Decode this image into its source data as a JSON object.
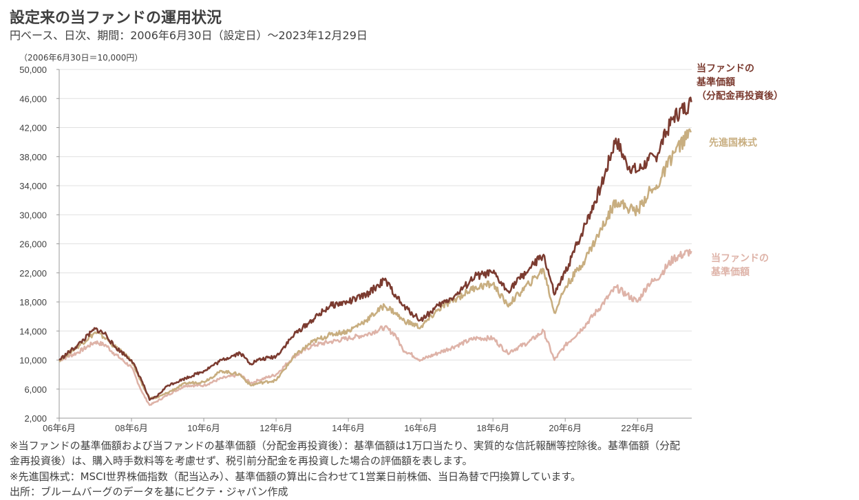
{
  "title": "設定来の当ファンドの運用状況",
  "subtitle": "円ベース、日次、期間：2006年6月30日（設定日）～2023年12月29日",
  "unit_note": "（2006年6月30日＝10,000円）",
  "notes": [
    "※当ファンドの基準価額および当ファンドの基準価額（分配金再投資後）：基準価額は1万口当たり、実質的な信託報酬等控除後。基準価額（分配",
    "金再投資後）は、購入時手数料等を考慮せず、税引前分配金を再投資した場合の評価額を表します。",
    "※先進国株式：MSCI世界株価指数（配当込み）、基準価額の算出に合わせて1営業日前株価、当日為替で円換算しています。",
    "出所：ブルームバーグのデータを基にピクテ・ジャパン作成"
  ],
  "chart_data": {
    "type": "line",
    "title": "設定来の当ファンドの運用状況",
    "xlabel": "",
    "ylabel": "（2006年6月30日＝10,000円）",
    "xlim": [
      2006.5,
      2024.0
    ],
    "ylim": [
      2000,
      50000
    ],
    "yticks": [
      2000,
      6000,
      10000,
      14000,
      18000,
      22000,
      26000,
      30000,
      34000,
      38000,
      42000,
      46000,
      50000
    ],
    "ytick_labels": [
      "2,000",
      "6,000",
      "10,000",
      "14,000",
      "18,000",
      "22,000",
      "26,000",
      "30,000",
      "34,000",
      "38,000",
      "42,000",
      "46,000",
      "50,000"
    ],
    "xticks": [
      2006.5,
      2008.5,
      2010.5,
      2012.5,
      2014.5,
      2016.5,
      2018.5,
      2020.5,
      2022.5
    ],
    "xtick_labels": [
      "06年6月",
      "08年6月",
      "10年6月",
      "12年6月",
      "14年6月",
      "16年6月",
      "18年6月",
      "20年6月",
      "22年6月"
    ],
    "grid": true,
    "x": [
      2006.5,
      2007.0,
      2007.5,
      2007.8,
      2008.0,
      2008.5,
      2008.8,
      2009.0,
      2009.2,
      2009.5,
      2010.0,
      2010.5,
      2011.0,
      2011.5,
      2011.8,
      2012.0,
      2012.5,
      2013.0,
      2013.5,
      2014.0,
      2014.5,
      2015.0,
      2015.5,
      2015.8,
      2016.0,
      2016.5,
      2017.0,
      2017.5,
      2018.0,
      2018.5,
      2018.9,
      2019.5,
      2019.9,
      2020.2,
      2020.5,
      2021.0,
      2021.5,
      2021.9,
      2022.2,
      2022.5,
      2022.8,
      2023.0,
      2023.5,
      2023.99
    ],
    "series": [
      {
        "name": "当ファンドの基準価額（分配金再投資後）",
        "label_lines": [
          "当ファンドの",
          "基準価額",
          "（分配金再投資後）"
        ],
        "color": "#7b3b30",
        "values": [
          10000,
          12000,
          14300,
          13500,
          12000,
          10000,
          7000,
          4500,
          5000,
          6500,
          7500,
          8500,
          10000,
          11000,
          9500,
          10000,
          10500,
          13500,
          15500,
          17500,
          18000,
          19000,
          21000,
          19000,
          17500,
          15500,
          17500,
          19000,
          21500,
          22000,
          19500,
          22500,
          24500,
          19000,
          22000,
          28000,
          34000,
          40500,
          37000,
          36000,
          37500,
          38000,
          43500,
          45500
        ]
      },
      {
        "name": "先進国株式",
        "label_lines": [
          "先進国株式"
        ],
        "color": "#c8ae80",
        "values": [
          10000,
          11800,
          13800,
          13000,
          12000,
          10000,
          6500,
          4800,
          4800,
          5500,
          6800,
          7000,
          8500,
          8000,
          6500,
          6800,
          7200,
          10500,
          12500,
          13500,
          14000,
          15500,
          17500,
          16500,
          15500,
          14500,
          17000,
          18500,
          20000,
          20500,
          17500,
          20500,
          22500,
          16500,
          20000,
          23500,
          28000,
          32000,
          31000,
          30500,
          33000,
          33500,
          38500,
          41500
        ]
      },
      {
        "name": "当ファンドの基準価額",
        "label_lines": [
          "当ファンドの",
          "基準価額"
        ],
        "color": "#deb3a8",
        "values": [
          10000,
          11000,
          12500,
          12000,
          11000,
          9000,
          5500,
          3800,
          4300,
          5200,
          6500,
          6500,
          7500,
          8000,
          6800,
          7200,
          8000,
          10500,
          12000,
          12500,
          13000,
          13500,
          14500,
          13500,
          11500,
          10000,
          11000,
          12000,
          13000,
          13000,
          11000,
          12500,
          14000,
          10000,
          12000,
          14500,
          17500,
          20000,
          19000,
          18000,
          20500,
          21000,
          24000,
          25000
        ]
      }
    ]
  }
}
